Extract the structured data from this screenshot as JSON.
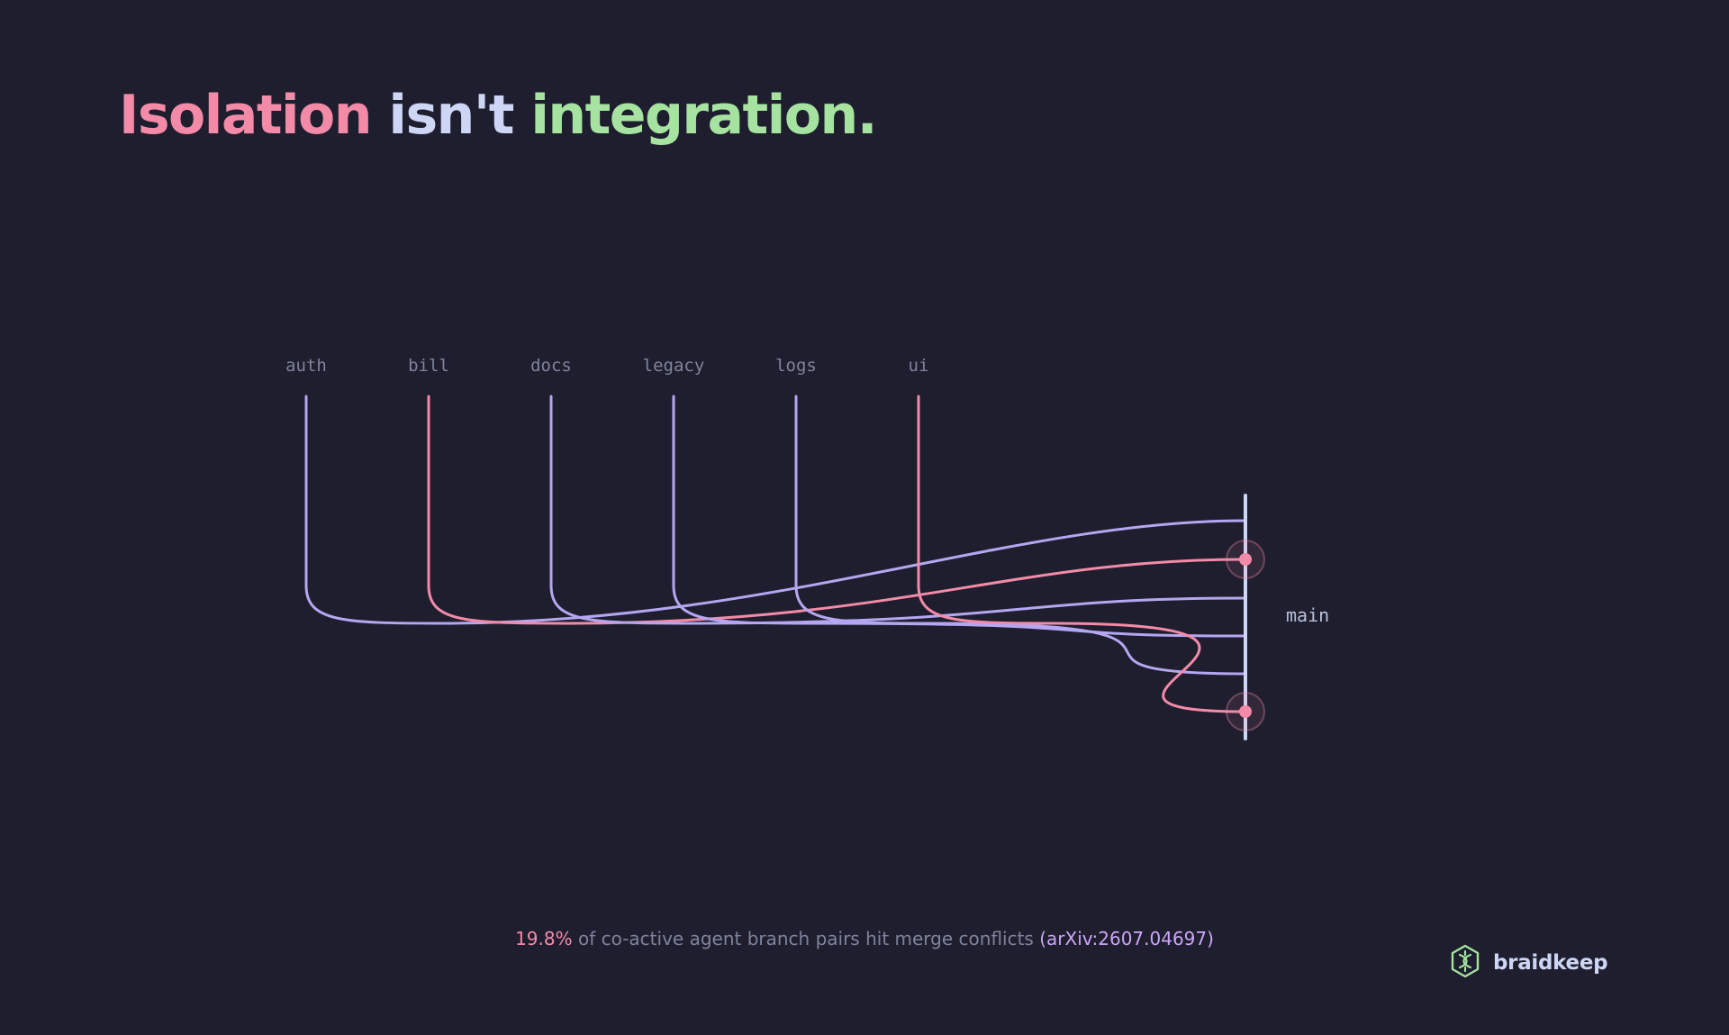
{
  "title": {
    "part1": "Isolation",
    "part2": "isn't",
    "part3": "integration."
  },
  "branches": [
    {
      "label": "auth",
      "status": "clean"
    },
    {
      "label": "bill",
      "status": "conflict"
    },
    {
      "label": "docs",
      "status": "clean"
    },
    {
      "label": "legacy",
      "status": "clean"
    },
    {
      "label": "logs",
      "status": "clean"
    },
    {
      "label": "ui",
      "status": "conflict"
    }
  ],
  "trunk": {
    "label": "main"
  },
  "colors": {
    "background": "#1e1e2e",
    "clean": "#b4a6f0",
    "conflict": "#f38ba8",
    "trunk": "#cdd6f4",
    "accent_green": "#a6e3a1"
  },
  "footnote": {
    "stat": "19.8%",
    "text": " of co-active agent branch pairs hit merge conflicts ",
    "citation": "(arXiv:2607.04697)"
  },
  "brand": {
    "name": "braidkeep",
    "icon": "hexagon-braid-logo-icon"
  }
}
